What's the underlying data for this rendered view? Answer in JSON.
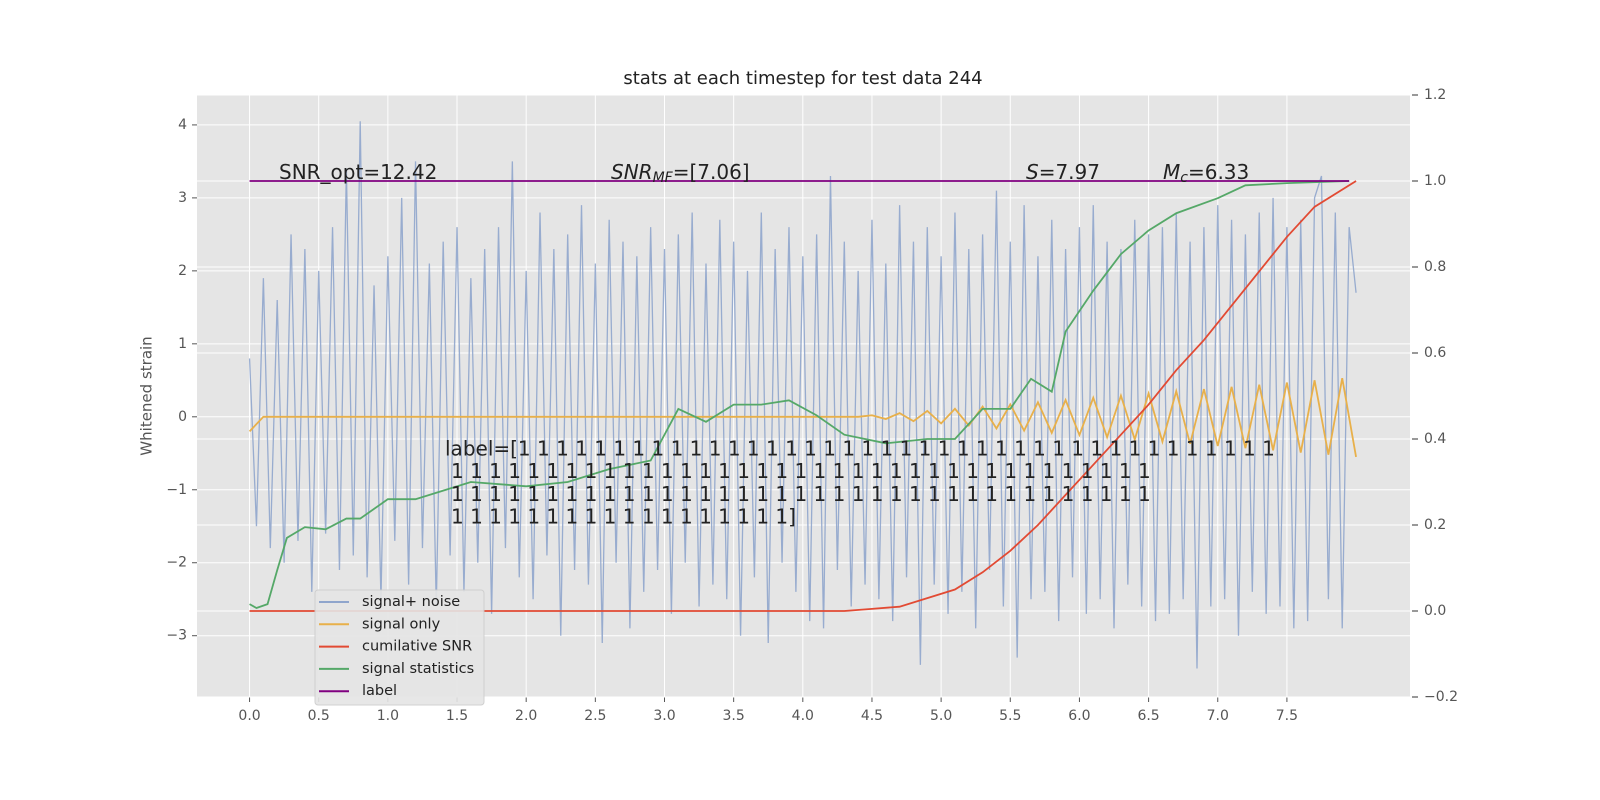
{
  "chart_data": {
    "type": "line",
    "title": "stats at each timestep for test data 244",
    "y_label": "Whitened strain",
    "xlim": [
      -0.38,
      8.39
    ],
    "ylim": [
      -3.84,
      4.41
    ],
    "y2lim": [
      -0.2,
      1.2
    ],
    "xticks": [
      {
        "value": 0,
        "label": "0.0"
      },
      0.5,
      {
        "value": 1,
        "label": "1.0"
      },
      1.5,
      {
        "value": 2,
        "label": "2.0"
      },
      2.5,
      {
        "value": 3,
        "label": "3.0"
      },
      3.5,
      {
        "value": 4,
        "label": "4.0"
      },
      4.5,
      {
        "value": 5,
        "label": "5.0"
      },
      5.5,
      {
        "value": 6,
        "label": "6.0"
      },
      6.5,
      {
        "value": 7,
        "label": "7.0"
      },
      7.5
    ],
    "yticks": [
      {
        "value": -3,
        "label": "−3"
      },
      {
        "value": -2,
        "label": "−2"
      },
      {
        "value": -1,
        "label": "−1"
      },
      0,
      1,
      2,
      3,
      4
    ],
    "y2ticks": [
      {
        "value": -0.2,
        "label": "−0.2"
      },
      {
        "value": 0,
        "label": "0.0"
      },
      0.2,
      0.4,
      0.6,
      0.8,
      {
        "value": 1,
        "label": "1.0"
      },
      1.2
    ],
    "grid": true,
    "legend": "lower left",
    "series": [
      {
        "name": "signal+ noise",
        "color": "#8fa5cc",
        "axis": "y",
        "x": [
          0,
          0.05,
          0.1,
          0.15,
          0.2,
          0.25,
          0.3,
          0.35,
          0.4,
          0.45,
          0.5,
          0.55,
          0.6,
          0.65,
          0.7,
          0.75,
          0.8,
          0.85,
          0.9,
          0.95,
          1,
          1.05,
          1.1,
          1.15,
          1.2,
          1.25,
          1.3,
          1.35,
          1.4,
          1.45,
          1.5,
          1.55,
          1.6,
          1.65,
          1.7,
          1.75,
          1.8,
          1.85,
          1.9,
          1.95,
          2,
          2.05,
          2.1,
          2.15,
          2.2,
          2.25,
          2.3,
          2.35,
          2.4,
          2.45,
          2.5,
          2.55,
          2.6,
          2.65,
          2.7,
          2.75,
          2.8,
          2.85,
          2.9,
          2.95,
          3,
          3.05,
          3.1,
          3.15,
          3.2,
          3.25,
          3.3,
          3.35,
          3.4,
          3.45,
          3.5,
          3.55,
          3.6,
          3.65,
          3.7,
          3.75,
          3.8,
          3.85,
          3.9,
          3.95,
          4,
          4.05,
          4.1,
          4.15,
          4.2,
          4.25,
          4.3,
          4.35,
          4.4,
          4.45,
          4.5,
          4.55,
          4.6,
          4.65,
          4.7,
          4.75,
          4.8,
          4.85,
          4.9,
          4.95,
          5,
          5.05,
          5.1,
          5.15,
          5.2,
          5.25,
          5.3,
          5.35,
          5.4,
          5.45,
          5.5,
          5.55,
          5.6,
          5.65,
          5.7,
          5.75,
          5.8,
          5.85,
          5.9,
          5.95,
          6,
          6.05,
          6.1,
          6.15,
          6.2,
          6.25,
          6.3,
          6.35,
          6.4,
          6.45,
          6.5,
          6.55,
          6.6,
          6.65,
          6.7,
          6.75,
          6.8,
          6.85,
          6.9,
          6.95,
          7,
          7.05,
          7.1,
          7.15,
          7.2,
          7.25,
          7.3,
          7.35,
          7.4,
          7.45,
          7.5,
          7.55,
          7.6,
          7.65,
          7.7,
          7.75,
          7.8,
          7.85,
          7.9,
          7.95,
          8
        ],
        "values": [
          0.8,
          -1.5,
          1.9,
          -1.8,
          1.6,
          -2.0,
          2.5,
          -1.7,
          2.3,
          -2.4,
          2.0,
          -1.6,
          2.6,
          -2.1,
          3.4,
          -1.9,
          4.05,
          -2.2,
          1.8,
          -2.5,
          2.2,
          -1.7,
          3.0,
          -2.3,
          3.5,
          -1.8,
          2.1,
          -2.6,
          2.4,
          -1.9,
          2.6,
          -2.4,
          1.9,
          -2.0,
          2.3,
          -2.7,
          2.6,
          -1.8,
          3.5,
          -2.2,
          2.0,
          -2.5,
          2.8,
          -1.9,
          2.3,
          -3.0,
          2.5,
          -2.1,
          2.9,
          -2.3,
          2.1,
          -3.1,
          2.7,
          -2.0,
          2.4,
          -2.9,
          2.2,
          -2.4,
          2.6,
          -2.1,
          2.3,
          -2.7,
          2.5,
          -2.0,
          2.8,
          -2.6,
          2.1,
          -2.3,
          2.7,
          -2.5,
          2.4,
          -3.0,
          2.0,
          -2.2,
          2.8,
          -3.1,
          2.3,
          -2.0,
          2.6,
          -2.4,
          2.2,
          -2.8,
          2.5,
          -2.9,
          3.3,
          -2.1,
          2.4,
          -2.6,
          2.0,
          -2.3,
          2.7,
          -2.5,
          2.1,
          -2.8,
          2.9,
          -2.2,
          2.4,
          -3.4,
          2.6,
          -2.3,
          2.2,
          -2.7,
          2.8,
          -2.4,
          2.3,
          -2.9,
          2.5,
          -2.1,
          3.1,
          -2.6,
          2.4,
          -3.3,
          2.9,
          -2.5,
          2.2,
          -2.4,
          2.7,
          -2.8,
          2.3,
          -2.2,
          2.6,
          -2.7,
          2.9,
          -2.5,
          2.4,
          -2.9,
          2.3,
          -2.3,
          2.7,
          -2.6,
          2.5,
          -2.8,
          2.6,
          -2.7,
          2.8,
          -2.5,
          2.4,
          -3.45,
          2.6,
          -2.6,
          2.9,
          -2.5,
          2.7,
          -3.0,
          2.5,
          -2.4,
          2.8,
          -2.7,
          3.0,
          -2.6,
          2.6,
          -2.9,
          2.7,
          -2.8,
          3.0,
          3.3,
          -2.5,
          2.8,
          -2.9,
          2.6,
          1.7
        ]
      },
      {
        "name": "signal only",
        "color": "#e8b04a",
        "axis": "y",
        "x": [
          0,
          0.1,
          0.2,
          0.3,
          0.4,
          0.5,
          0.6,
          0.7,
          0.8,
          0.9,
          1,
          1.1,
          1.2,
          1.3,
          1.4,
          1.5,
          1.6,
          1.7,
          1.8,
          1.9,
          2,
          2.1,
          2.2,
          2.3,
          2.4,
          2.5,
          2.6,
          2.7,
          2.8,
          2.9,
          3,
          3.1,
          3.2,
          3.3,
          3.4,
          3.5,
          3.6,
          3.7,
          3.8,
          3.9,
          4,
          4.1,
          4.2,
          4.3,
          4.4,
          4.5,
          4.6,
          4.7,
          4.8,
          4.9,
          5,
          5.1,
          5.2,
          5.3,
          5.4,
          5.5,
          5.6,
          5.7,
          5.8,
          5.9,
          6,
          6.1,
          6.2,
          6.3,
          6.4,
          6.5,
          6.6,
          6.7,
          6.8,
          6.9,
          7,
          7.1,
          7.2,
          7.3,
          7.4,
          7.5,
          7.6,
          7.7,
          7.8,
          7.9,
          8
        ],
        "values": [
          -0.2,
          0,
          0,
          0,
          0,
          0,
          0,
          0,
          0,
          0,
          0,
          0,
          0,
          0,
          0,
          0,
          0,
          0,
          0,
          0,
          0,
          0,
          0,
          0,
          0,
          0,
          0,
          0,
          0,
          0,
          0,
          0,
          0,
          0,
          0,
          0,
          0,
          0,
          0,
          0,
          0,
          0,
          0,
          0,
          0,
          0.02,
          -0.03,
          0.05,
          -0.06,
          0.08,
          -0.09,
          0.11,
          -0.12,
          0.14,
          -0.16,
          0.17,
          -0.19,
          0.2,
          -0.22,
          0.23,
          -0.25,
          0.26,
          -0.28,
          0.29,
          -0.31,
          0.32,
          -0.34,
          0.35,
          -0.37,
          0.38,
          -0.4,
          0.41,
          -0.43,
          0.44,
          -0.46,
          0.47,
          -0.49,
          0.5,
          -0.52,
          0.53,
          -0.55
        ]
      },
      {
        "name": "cumilative SNR",
        "color": "#e24a33",
        "axis": "y2",
        "x": [
          0,
          4.3,
          4.5,
          4.7,
          4.9,
          5.1,
          5.3,
          5.5,
          5.7,
          5.9,
          6.1,
          6.3,
          6.5,
          6.7,
          6.9,
          7.1,
          7.3,
          7.5,
          7.7,
          8
        ],
        "values": [
          0,
          0,
          0.005,
          0.01,
          0.03,
          0.05,
          0.09,
          0.14,
          0.2,
          0.27,
          0.34,
          0.41,
          0.48,
          0.56,
          0.63,
          0.71,
          0.79,
          0.87,
          0.94,
          1.0
        ]
      },
      {
        "name": "signal statistics",
        "color": "#55a868",
        "axis": "y2",
        "x": [
          0,
          0.05,
          0.13,
          0.2,
          0.27,
          0.4,
          0.55,
          0.7,
          0.8,
          1.0,
          1.2,
          1.4,
          1.6,
          2.0,
          2.3,
          2.6,
          2.9,
          3.1,
          3.3,
          3.5,
          3.7,
          3.9,
          4.1,
          4.3,
          4.6,
          4.9,
          5.1,
          5.3,
          5.5,
          5.65,
          5.8,
          5.9,
          6.1,
          6.3,
          6.5,
          6.7,
          7.0,
          7.2,
          7.5,
          7.95
        ],
        "values": [
          0.016,
          0.007,
          0.016,
          0.095,
          0.17,
          0.195,
          0.19,
          0.215,
          0.215,
          0.26,
          0.26,
          0.28,
          0.3,
          0.29,
          0.3,
          0.33,
          0.35,
          0.47,
          0.44,
          0.48,
          0.48,
          0.49,
          0.455,
          0.41,
          0.39,
          0.4,
          0.4,
          0.47,
          0.47,
          0.54,
          0.51,
          0.65,
          0.745,
          0.83,
          0.885,
          0.925,
          0.96,
          0.99,
          0.995,
          1.0
        ]
      },
      {
        "name": "label",
        "color": "#800080",
        "axis": "y2",
        "x": [
          0,
          7.95
        ],
        "values": [
          1.0,
          1.0
        ]
      }
    ],
    "annotations": [
      {
        "text": "SNR_opt=12.42"
      },
      {
        "symbol": "SNR",
        "sub": "MF",
        "text": "=[7.06]"
      },
      {
        "symbol": "S",
        "text": "=7.97"
      },
      {
        "symbol": "M",
        "sub": "c",
        "text": "=6.33"
      }
    ],
    "label_text": [
      "label=[1 1 1 1 1 1 1 1 1 1 1 1 1 1 1 1 1 1 1 1 1 1 1 1 1 1 1 1 1 1 1 1 1 1 1 1 1 1 1 1",
      "1 1 1 1 1 1 1 1 1 1 1 1 1 1 1 1 1 1 1 1 1 1 1 1 1 1 1 1 1 1 1 1 1 1 1 1 1",
      "1 1 1 1 1 1 1 1 1 1 1 1 1 1 1 1 1 1 1 1 1 1 1 1 1 1 1 1 1 1 1 1 1 1 1 1 1",
      "1 1 1 1 1 1 1 1 1 1 1 1 1 1 1 1 1 1]"
    ]
  }
}
